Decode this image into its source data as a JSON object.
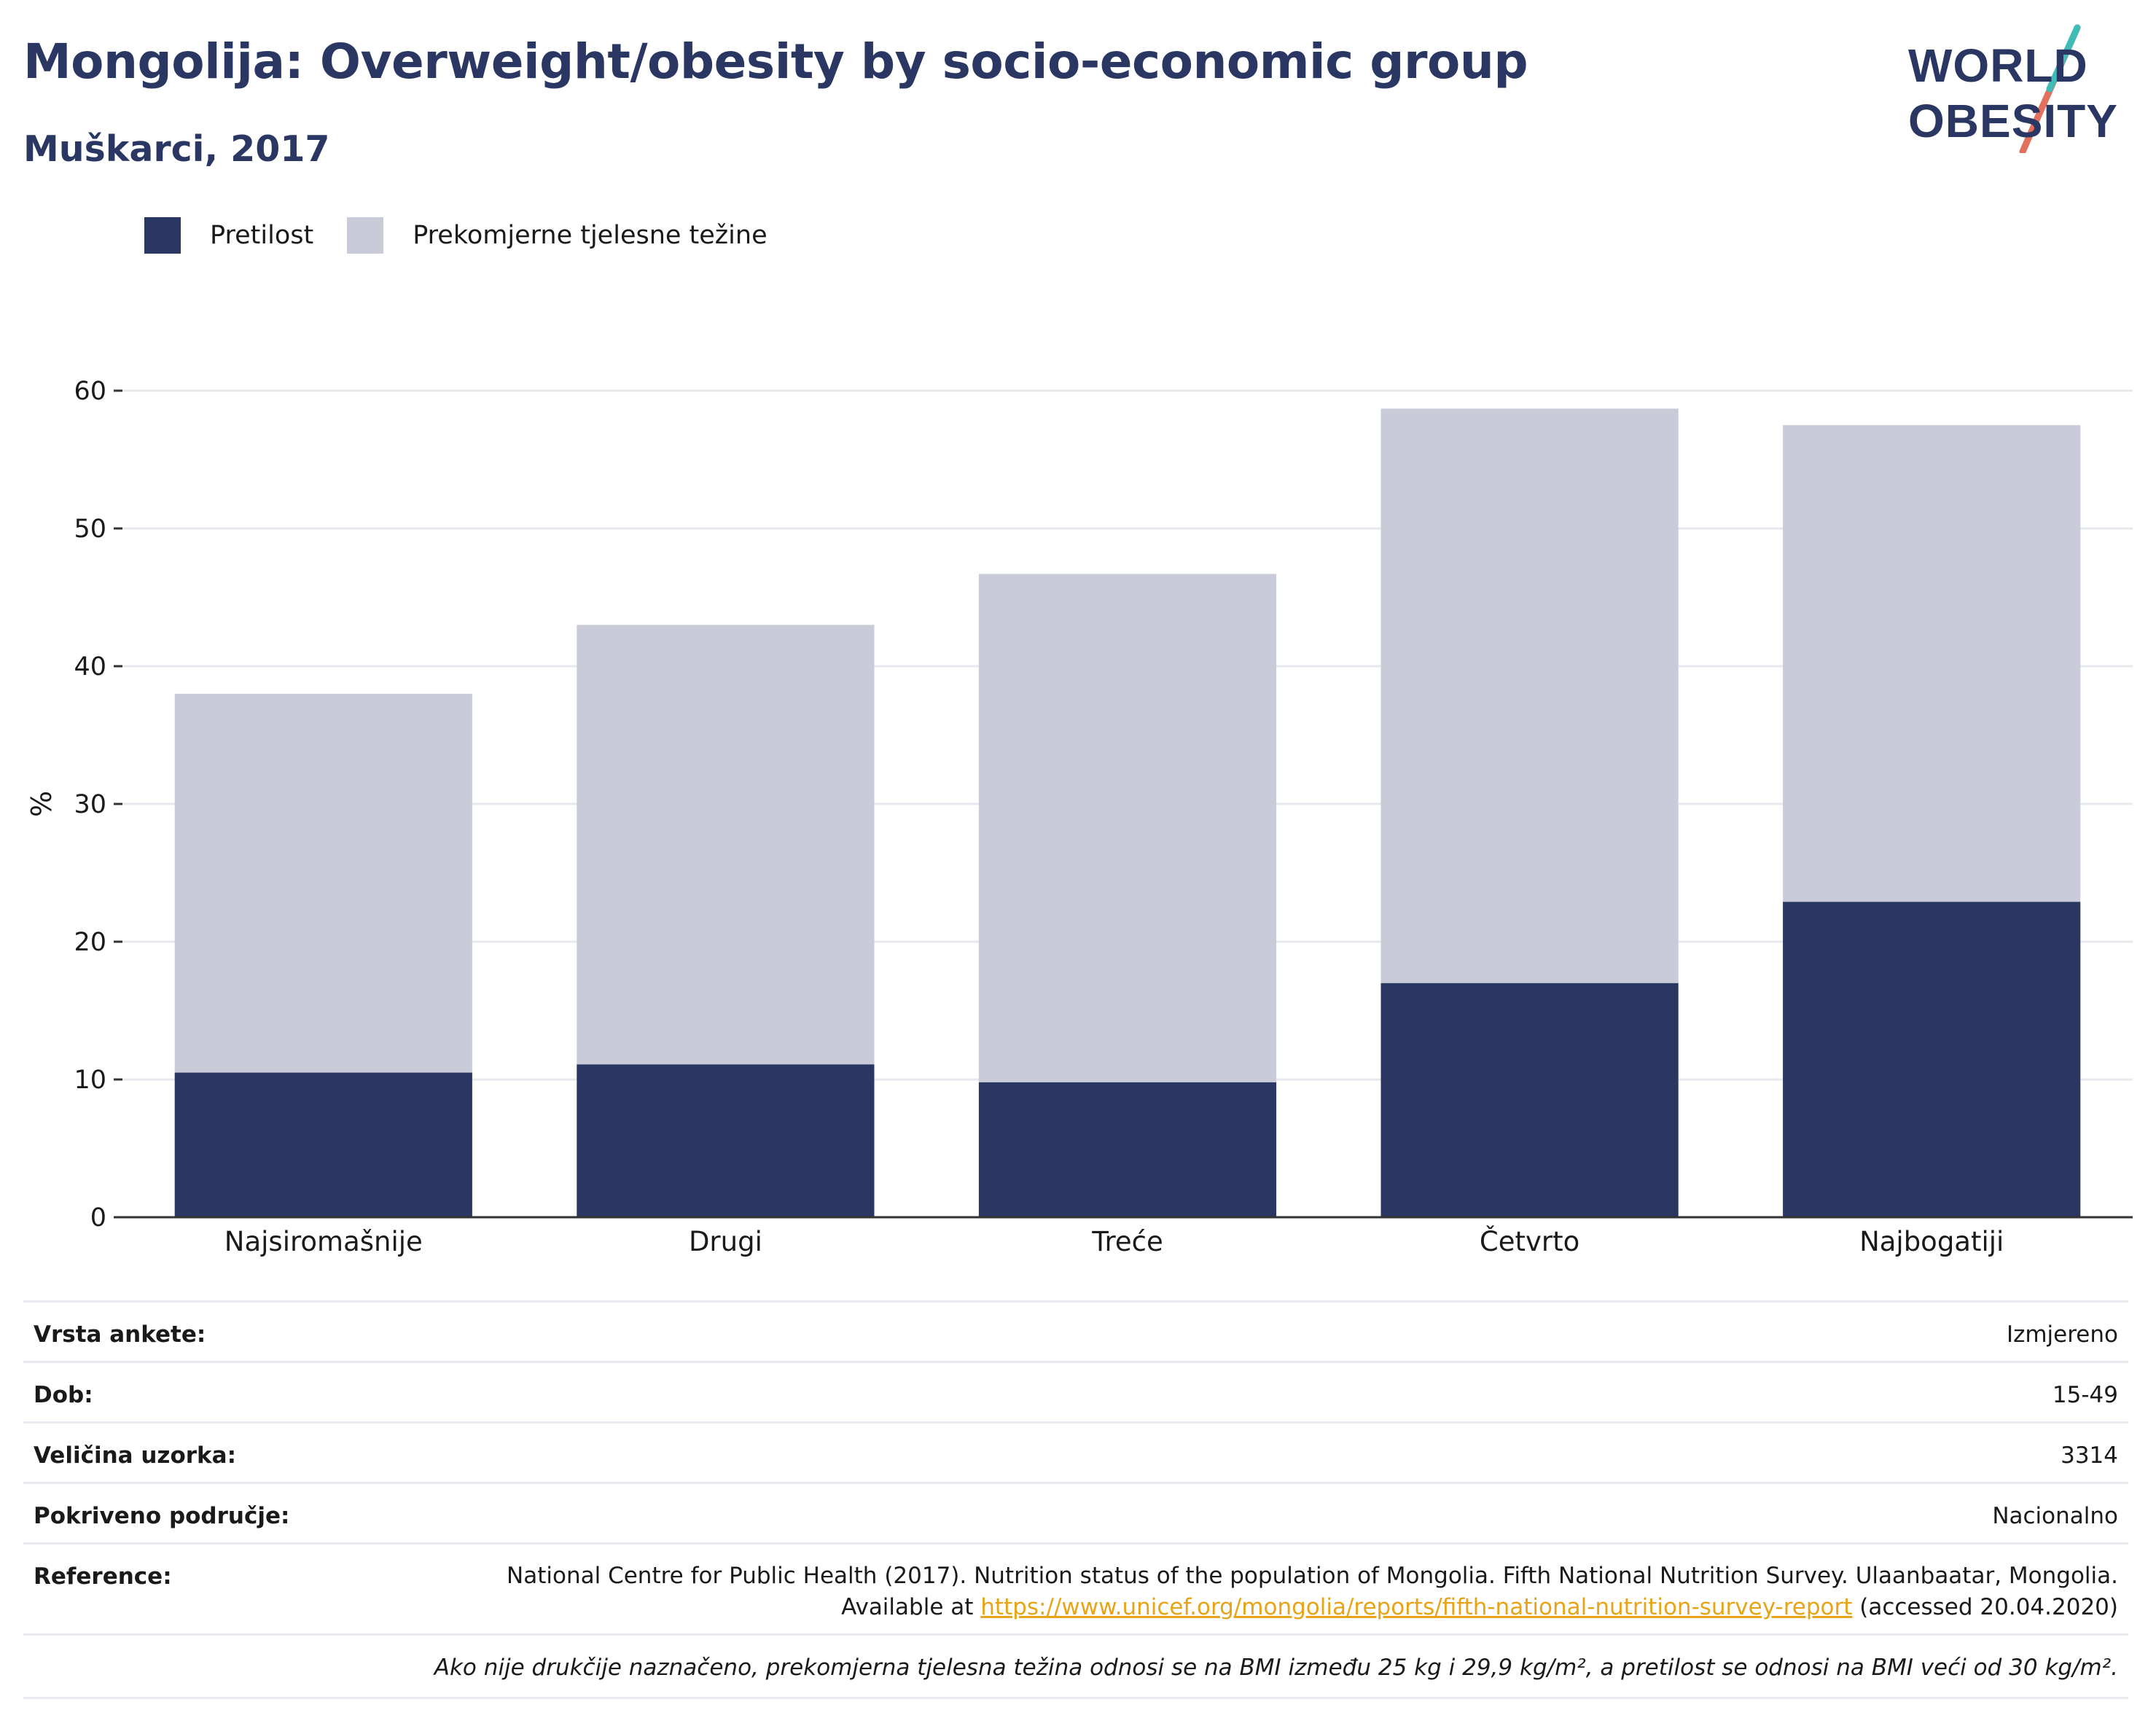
{
  "title": "Mongolija: Overweight/obesity by socio-economic group",
  "subtitle": "Muškarci, 2017",
  "logo": {
    "line1": "WORLD",
    "line2": "OBESITY"
  },
  "colors": {
    "obesity": "#2a3763",
    "overweight": "#c9ccd8",
    "title": "#2a3763",
    "link": "#e8a417"
  },
  "legend": [
    {
      "label": "Pretilost",
      "color": "#2a3763"
    },
    {
      "label": "Prekomjerne tjelesne težine",
      "color": "#c9ccd8"
    }
  ],
  "chart_data": {
    "type": "bar",
    "stacked": true,
    "categories": [
      "Najsiromašnije",
      "Drugi",
      "Treće",
      "Četvrto",
      "Najbogatiji"
    ],
    "series": [
      {
        "name": "Pretilost",
        "values": [
          10.5,
          11.1,
          9.8,
          17.0,
          22.9
        ]
      },
      {
        "name": "Prekomjerne tjelesne težine",
        "values": [
          27.5,
          31.9,
          36.9,
          41.7,
          34.6
        ]
      }
    ],
    "ylabel": "%",
    "xlabel": "",
    "ylim": [
      0,
      60
    ],
    "yticks": [
      0,
      10,
      20,
      30,
      40,
      50,
      60
    ],
    "grid": true,
    "legend_position": "top-left"
  },
  "meta": [
    {
      "key": "Vrsta ankete:",
      "value": "Izmjereno"
    },
    {
      "key": "Dob:",
      "value": "15-49"
    },
    {
      "key": "Veličina uzorka:",
      "value": "3314"
    },
    {
      "key": "Pokriveno područje:",
      "value": "Nacionalno"
    }
  ],
  "reference": {
    "key": "Reference:",
    "text_before": "National Centre for Public Health (2017). Nutrition status of the population of Mongolia. Fifth National Nutrition Survey. Ulaanbaatar, Mongolia. Available at ",
    "link": "https://www.unicef.org/mongolia/reports/fifth-national-nutrition-survey-report",
    "text_after": " (accessed 20.04.2020)"
  },
  "note": "Ako nije drukčije naznačeno, prekomjerna tjelesna težina odnosi se na BMI između 25 kg i 29,9 kg/m², a pretilost se odnosi na BMI veći od 30 kg/m²."
}
